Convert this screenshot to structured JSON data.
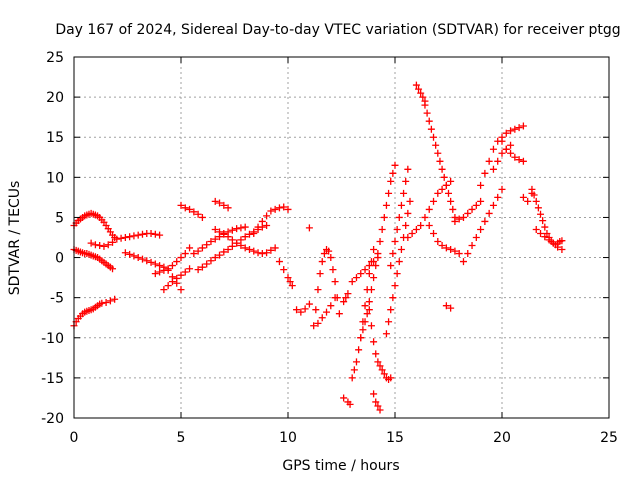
{
  "chart_data": {
    "type": "scatter",
    "title": "Day 167 of 2024, Sidereal Day-to-day VTEC variation (SDTVAR) for receiver ptgg",
    "xlabel": "GPS time / hours",
    "ylabel": "SDTVAR / TECUs",
    "xlim": [
      0,
      25
    ],
    "ylim": [
      -20,
      25
    ],
    "xticks": [
      0,
      5,
      10,
      15,
      20,
      25
    ],
    "yticks": [
      -20,
      -15,
      -10,
      -5,
      0,
      5,
      10,
      15,
      20,
      25
    ],
    "xtick_labels": [
      "0",
      "5",
      "10",
      "15",
      "20",
      "25"
    ],
    "ytick_labels": [
      "-20",
      "-15",
      "-10",
      "-5",
      "0",
      "5",
      "10",
      "15",
      "20",
      "25"
    ],
    "grid": true,
    "marker": "plus",
    "color": "#ff0000",
    "series": [
      {
        "x": [
          0.0,
          0.1,
          0.2,
          0.3,
          0.4,
          0.5,
          0.6,
          0.7,
          0.8,
          0.9,
          1.0,
          1.1,
          1.2,
          1.3,
          1.4,
          1.5,
          1.6,
          1.7,
          1.8,
          1.9,
          0.0,
          0.1,
          0.2,
          0.3,
          0.4,
          0.5,
          0.6,
          0.7,
          0.8,
          0.9,
          1.0,
          1.1,
          1.2,
          1.3,
          1.4,
          1.5,
          1.6,
          1.7,
          1.8,
          0.0,
          0.1,
          0.2,
          0.3,
          0.4,
          0.5,
          0.6,
          0.7,
          0.8,
          0.9,
          1.0,
          1.1,
          1.2,
          1.3,
          1.5,
          1.7,
          1.9,
          0.8,
          1.0,
          1.2,
          1.4,
          1.6,
          1.8,
          2.0,
          2.2,
          2.4,
          2.6,
          2.8,
          3.0,
          3.2,
          3.4,
          3.6,
          3.8,
          4.0,
          2.4,
          2.6,
          2.8,
          3.0,
          3.2,
          3.4,
          3.6,
          3.8,
          4.0,
          4.2,
          4.4,
          4.6,
          4.8,
          5.0,
          3.8,
          4.0,
          4.2,
          4.4,
          4.6,
          4.8,
          5.0,
          5.2,
          5.4,
          4.2,
          4.4,
          4.6,
          4.8,
          5.0,
          5.2,
          5.4,
          5.0,
          5.2,
          5.4,
          5.6,
          5.8,
          6.0,
          5.6,
          5.8,
          6.0,
          6.2,
          6.4,
          6.6,
          6.8,
          7.0,
          7.2,
          7.4,
          7.6,
          7.8,
          8.0,
          5.8,
          6.0,
          6.2,
          6.4,
          6.6,
          6.8,
          7.0,
          7.2,
          7.4,
          7.6,
          7.8,
          8.0,
          8.2,
          8.4,
          8.6,
          8.8,
          9.0,
          6.6,
          6.8,
          7.0,
          7.2,
          7.4,
          7.6,
          7.8,
          8.0,
          8.2,
          8.4,
          8.6,
          8.8,
          9.0,
          9.2,
          9.4,
          6.6,
          6.8,
          7.0,
          7.2,
          8.4,
          8.6,
          8.8,
          9.0,
          9.2,
          9.4,
          9.6,
          9.8,
          10.0,
          9.6,
          9.8,
          10.0,
          10.1,
          10.2,
          11.0,
          10.4,
          10.6,
          10.8,
          11.0,
          11.2,
          11.3,
          11.4,
          11.5,
          11.6,
          11.7,
          11.8,
          11.9,
          12.0,
          12.1,
          12.2,
          12.3,
          12.4,
          11.4,
          11.6,
          11.8,
          12.0,
          12.2,
          12.6,
          12.8,
          12.9,
          13.0,
          13.2,
          13.4,
          13.6,
          13.8,
          14.0,
          14.2,
          13.0,
          13.1,
          13.2,
          13.3,
          13.4,
          13.5,
          13.6,
          13.7,
          13.8,
          13.9,
          14.0,
          12.6,
          12.7,
          12.8,
          13.4,
          13.5,
          13.6,
          13.7,
          13.8,
          13.9,
          14.0,
          14.1,
          14.2,
          14.3,
          14.4,
          14.5,
          14.6,
          14.7,
          14.8,
          14.9,
          15.0,
          13.8,
          13.9,
          14.0,
          14.1,
          14.2,
          14.3,
          14.4,
          14.5,
          14.6,
          14.7,
          14.8,
          14.0,
          14.1,
          14.2,
          14.3,
          14.6,
          14.7,
          14.8,
          14.9,
          15.0,
          15.1,
          15.2,
          15.3,
          15.4,
          15.5,
          15.6,
          15.7,
          14.8,
          14.9,
          15.0,
          15.1,
          15.2,
          15.3,
          15.4,
          15.5,
          15.6,
          15.6,
          15.8,
          16.0,
          16.2,
          16.4,
          16.6,
          16.8,
          17.0,
          17.2,
          17.4,
          17.6,
          16.0,
          16.1,
          16.2,
          16.3,
          16.4,
          16.4,
          16.5,
          16.6,
          16.7,
          16.8,
          16.9,
          17.0,
          17.1,
          17.2,
          17.3,
          17.4,
          17.5,
          17.6,
          17.7,
          17.8,
          16.6,
          16.8,
          17.0,
          17.2,
          17.4,
          17.6,
          17.8,
          18.0,
          17.4,
          17.6,
          17.8,
          18.0,
          18.2,
          18.4,
          18.6,
          18.8,
          19.0,
          18.2,
          18.4,
          18.6,
          18.8,
          19.0,
          19.2,
          19.4,
          19.6,
          19.8,
          20.0,
          19.0,
          19.2,
          19.4,
          19.6,
          19.8,
          20.0,
          20.2,
          20.4,
          20.6,
          20.8,
          21.0,
          19.6,
          19.8,
          20.0,
          20.2,
          20.4,
          20.0,
          20.2,
          20.4,
          20.6,
          20.8,
          21.0,
          21.0,
          21.2,
          21.4,
          21.4,
          21.5,
          21.6,
          21.7,
          21.8,
          21.9,
          22.0,
          22.1,
          22.2,
          22.3,
          22.4,
          22.5,
          22.6,
          22.7,
          22.8,
          21.6,
          21.8,
          22.0,
          22.2,
          22.4,
          22.6,
          22.8
        ],
        "y": [
          4.0,
          4.3,
          4.6,
          4.8,
          5.0,
          5.2,
          5.3,
          5.4,
          5.5,
          5.4,
          5.3,
          5.2,
          5.0,
          4.7,
          4.4,
          4.0,
          3.6,
          3.2,
          2.8,
          2.5,
          1.0,
          0.9,
          0.8,
          0.7,
          0.6,
          0.5,
          0.5,
          0.4,
          0.3,
          0.2,
          0.1,
          0.0,
          -0.2,
          -0.4,
          -0.6,
          -0.8,
          -1.0,
          -1.2,
          -1.4,
          -8.5,
          -8.0,
          -7.6,
          -7.3,
          -7.0,
          -6.8,
          -6.7,
          -6.6,
          -6.5,
          -6.4,
          -6.2,
          -6.0,
          -5.8,
          -5.7,
          -5.6,
          -5.4,
          -5.2,
          1.8,
          1.6,
          1.5,
          1.4,
          1.6,
          1.9,
          2.3,
          2.4,
          2.5,
          2.6,
          2.7,
          2.8,
          2.9,
          3.0,
          3.0,
          2.9,
          2.8,
          0.6,
          0.4,
          0.2,
          0.0,
          -0.2,
          -0.4,
          -0.6,
          -0.8,
          -1.0,
          -1.2,
          -1.6,
          -2.4,
          -3.2,
          -4.0,
          -2.0,
          -1.8,
          -1.6,
          -1.4,
          -1.0,
          -0.5,
          0.0,
          0.5,
          1.2,
          -4.0,
          -3.5,
          -3.0,
          -2.6,
          -2.2,
          -1.8,
          -1.4,
          6.5,
          6.2,
          6.0,
          5.7,
          5.4,
          5.0,
          0.5,
          0.8,
          1.2,
          1.6,
          2.0,
          2.3,
          2.6,
          2.9,
          3.2,
          3.4,
          3.6,
          3.7,
          3.8,
          -1.5,
          -1.2,
          -0.8,
          -0.4,
          0.0,
          0.3,
          0.7,
          1.0,
          1.4,
          1.8,
          2.2,
          2.6,
          2.9,
          3.2,
          3.5,
          3.8,
          4.0,
          3.5,
          3.2,
          3.0,
          2.6,
          2.2,
          1.8,
          1.5,
          1.2,
          1.0,
          0.8,
          0.6,
          0.5,
          0.6,
          0.9,
          1.2,
          7.0,
          6.8,
          6.5,
          6.2,
          3.0,
          3.8,
          4.5,
          5.2,
          5.8,
          6.0,
          6.2,
          6.3,
          6.0,
          -0.5,
          -1.5,
          -2.5,
          -3.0,
          -3.5,
          3.7,
          -6.5,
          -6.8,
          -6.4,
          -5.8,
          -8.5,
          -6.5,
          -4.0,
          -2.0,
          -0.5,
          0.5,
          1.0,
          0.8,
          0.0,
          -1.5,
          -3.0,
          -5.0,
          -7.0,
          -8.2,
          -7.5,
          -6.8,
          -6.0,
          -5.0,
          -17.5,
          -18.0,
          -18.3,
          -3.0,
          -2.5,
          -2.0,
          -1.5,
          -1.0,
          -0.5,
          0.0,
          -15.0,
          -14.0,
          -13.0,
          -11.5,
          -10.0,
          -8.0,
          -6.0,
          -4.0,
          -2.0,
          -0.5,
          1.0,
          -5.5,
          -5.0,
          -4.5,
          -10.0,
          -9.0,
          -8.0,
          -7.0,
          -5.5,
          -4.0,
          -2.5,
          -1.0,
          0.5,
          2.0,
          3.5,
          5.0,
          6.5,
          8.0,
          9.5,
          10.5,
          11.5,
          -6.5,
          -8.5,
          -10.5,
          -12.0,
          -13.0,
          -13.5,
          -14.0,
          -14.5,
          -15.0,
          -15.2,
          -15.0,
          -17.0,
          -18.0,
          -18.5,
          -19.0,
          -9.5,
          -8.0,
          -6.5,
          -5.0,
          -3.5,
          -2.0,
          -0.5,
          1.0,
          2.5,
          4.0,
          5.5,
          7.0,
          -1.0,
          0.5,
          2.0,
          3.5,
          5.0,
          6.5,
          8.0,
          9.5,
          11.0,
          2.5,
          3.0,
          3.5,
          4.0,
          5.0,
          6.0,
          7.0,
          8.0,
          8.5,
          9.0,
          9.5,
          21.5,
          21.0,
          20.5,
          20.0,
          19.5,
          19.0,
          18.0,
          17.0,
          16.0,
          15.0,
          14.0,
          13.0,
          12.0,
          11.0,
          10.0,
          9.0,
          8.0,
          7.0,
          6.0,
          5.0,
          4.0,
          3.0,
          2.0,
          1.5,
          1.2,
          1.0,
          0.8,
          0.5,
          -6.0,
          -6.3,
          4.5,
          4.8,
          5.0,
          5.5,
          6.0,
          6.5,
          7.0,
          -0.5,
          0.5,
          1.5,
          2.5,
          3.5,
          4.5,
          5.5,
          6.5,
          7.5,
          8.5,
          9.0,
          10.5,
          12.0,
          13.5,
          14.5,
          15.0,
          15.5,
          15.8,
          16.0,
          16.2,
          16.4,
          11.0,
          12.0,
          13.0,
          13.5,
          14.0,
          14.5,
          13.5,
          13.0,
          12.5,
          12.2,
          12.0,
          7.5,
          7.0,
          8.0,
          8.5,
          7.8,
          7.0,
          6.2,
          5.4,
          4.6,
          3.8,
          3.0,
          2.5,
          2.0,
          1.8,
          1.6,
          1.8,
          2.0,
          2.1,
          3.5,
          3.0,
          2.6,
          2.2,
          1.8,
          1.3,
          1.0
        ]
      }
    ]
  }
}
